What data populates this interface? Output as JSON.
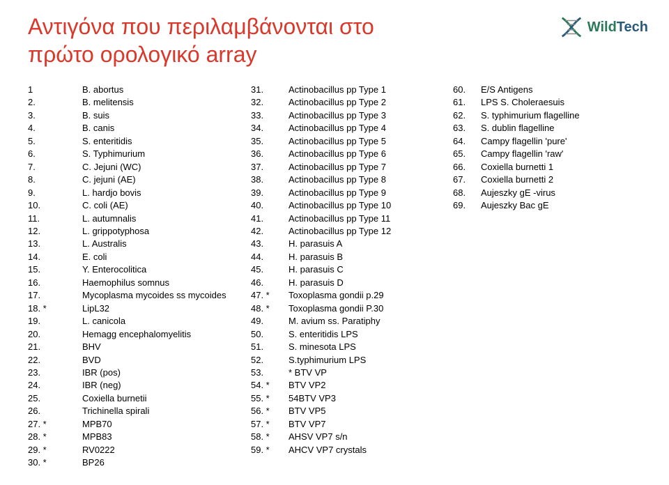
{
  "title_line1": "Αντιγόνα που περιλαμβάνονται στο",
  "title_line2": "πρώτο ορολογικό array",
  "logo": {
    "wild": "Wild",
    "tech": "Tech"
  },
  "col1": [
    {
      "n": "1",
      "t": "B. abortus"
    },
    {
      "n": "2.",
      "t": "B. melitensis"
    },
    {
      "n": "3.",
      "t": "B. suis"
    },
    {
      "n": "4.",
      "t": "B. canis"
    },
    {
      "n": "5.",
      "t": "S. enteritidis"
    },
    {
      "n": "6.",
      "t": "S. Typhimurium"
    },
    {
      "n": "7.",
      "t": "C. Jejuni (WC)"
    },
    {
      "n": "8.",
      "t": "C. jejuni (AE)"
    },
    {
      "n": "9.",
      "t": "L. hardjo bovis"
    },
    {
      "n": "10.",
      "t": "C. coli (AE)"
    },
    {
      "n": "11.",
      "t": "L. autumnalis"
    },
    {
      "n": "12.",
      "t": "L. grippotyphosa"
    },
    {
      "n": "13.",
      "t": "L. Australis"
    },
    {
      "n": "14.",
      "t": "E. coli"
    },
    {
      "n": "15.",
      "t": "Y. Enterocolitica"
    },
    {
      "n": "16.",
      "t": "Haemophilus somnus"
    },
    {
      "n": "17.",
      "t": "Mycoplasma mycoides ss mycoides"
    },
    {
      "n": "18. *",
      "t": "LipL32"
    },
    {
      "n": "19.",
      "t": "L. canicola"
    },
    {
      "n": "20.",
      "t": "Hemagg encephalomyelitis"
    },
    {
      "n": "21.",
      "t": "BHV"
    },
    {
      "n": "22.",
      "t": "BVD"
    },
    {
      "n": "23.",
      "t": "IBR (pos)"
    },
    {
      "n": "24.",
      "t": "IBR (neg)"
    },
    {
      "n": "25.",
      "t": "Coxiella burnetii"
    },
    {
      "n": "26.",
      "t": "Trichinella spirali"
    },
    {
      "n": "27. *",
      "t": "MPB70"
    },
    {
      "n": "28. *",
      "t": "MPB83"
    },
    {
      "n": "29. *",
      "t": "RV0222"
    },
    {
      "n": "30. *",
      "t": "BP26"
    }
  ],
  "col2": [
    {
      "n": "31.",
      "t": "Actinobacillus pp Type 1"
    },
    {
      "n": "32.",
      "t": "Actinobacillus pp Type 2"
    },
    {
      "n": "33.",
      "t": "Actinobacillus pp Type 3"
    },
    {
      "n": "34.",
      "t": "Actinobacillus pp Type 4"
    },
    {
      "n": "35.",
      "t": "Actinobacillus pp Type 5"
    },
    {
      "n": "36.",
      "t": "Actinobacillus pp Type 6"
    },
    {
      "n": "37.",
      "t": "Actinobacillus pp Type 7"
    },
    {
      "n": "38.",
      "t": "Actinobacillus pp Type 8"
    },
    {
      "n": "39.",
      "t": "Actinobacillus pp Type 9"
    },
    {
      "n": "40.",
      "t": "Actinobacillus pp Type 10"
    },
    {
      "n": "41.",
      "t": "Actinobacillus pp Type 11"
    },
    {
      "n": "42.",
      "t": "Actinobacillus pp Type 12"
    },
    {
      "n": "43.",
      "t": "H. parasuis A"
    },
    {
      "n": "44.",
      "t": "H. parasuis B"
    },
    {
      "n": "45.",
      "t": "H. parasuis C"
    },
    {
      "n": "46.",
      "t": "H. parasuis D"
    },
    {
      "n": "47. *",
      "t": "Toxoplasma gondii p.29"
    },
    {
      "n": "48. *",
      "t": "Toxoplasma gondii P.30"
    },
    {
      "n": "49.",
      "t": "M. avium  ss. Paratiphy"
    },
    {
      "n": "50.",
      "t": "S. enteritidis LPS"
    },
    {
      "n": "51.",
      "t": "S. minesota LPS"
    },
    {
      "n": "52.",
      "t": "S.typhimurium LPS"
    },
    {
      "n": "53.",
      "t": "    *          BTV VP"
    },
    {
      "n": "54. *",
      "t": "BTV VP2"
    },
    {
      "n": "55. *",
      "t": "54BTV VP3"
    },
    {
      "n": "56. *",
      "t": "BTV VP5"
    },
    {
      "n": "57. *",
      "t": "BTV VP7"
    },
    {
      "n": "58. *",
      "t": "AHSV VP7 s/n"
    },
    {
      "n": "59. *",
      "t": "AHCV VP7 crystals"
    }
  ],
  "col3": [
    {
      "n": "60.",
      "t": "E/S Antigens"
    },
    {
      "n": "61.",
      "t": "LPS S. Choleraesuis"
    },
    {
      "n": "62.",
      "t": "S. typhimurium flagelline"
    },
    {
      "n": "63.",
      "t": "S. dublin flagelline"
    },
    {
      "n": "64.",
      "t": "Campy flagellin 'pure'"
    },
    {
      "n": "65.",
      "t": "Campy flagellin 'raw'"
    },
    {
      "n": "66.",
      "t": "Coxiella burnetti 1"
    },
    {
      "n": "67.",
      "t": "Coxiella burnetti 2"
    },
    {
      "n": "68.",
      "t": "Aujeszky gE -virus"
    },
    {
      "n": "69.",
      "t": " Aujeszky Bac gE"
    }
  ]
}
